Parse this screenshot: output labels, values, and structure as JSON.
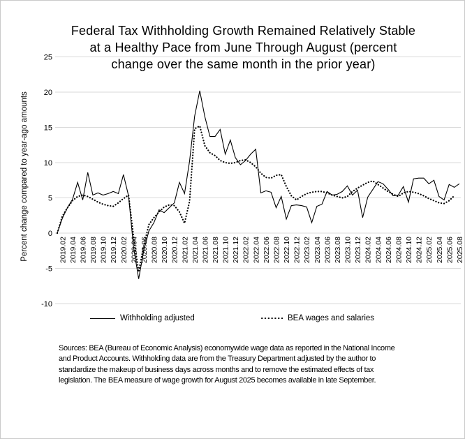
{
  "colors": {
    "background": "#ffffff",
    "border": "#c9c9c9",
    "gridline": "#d9d9d9",
    "series": "#000000",
    "text": "#000000"
  },
  "title": {
    "lines": [
      "Federal Tax Withholding Growth Remained Relatively Stable",
      "at a Healthy Pace from June Through August (percent",
      "change over the same month in the prior year)"
    ]
  },
  "y_axis": {
    "label": "Percent change compared to year-ago amounts",
    "ticks": [
      25,
      20,
      15,
      10,
      5,
      0,
      -5,
      -10
    ]
  },
  "x_axis": {
    "labels": [
      "2019.02",
      "2019.04",
      "2019.06",
      "2019.08",
      "2019.10",
      "2019.12",
      "2020.02",
      "2020.04",
      "2020.06",
      "2020.08",
      "2020.10",
      "2020.12",
      "2021.02",
      "2021.04",
      "2021.06",
      "2021.08",
      "2021.10",
      "2021.12",
      "2022.02",
      "2022.04",
      "2022.06",
      "2022.08",
      "2022.10",
      "2022.12",
      "2023.02",
      "2023.04",
      "2023.06",
      "2023.08",
      "2023.10",
      "2023.12",
      "2024.02",
      "2024.04",
      "2024.06",
      "2024.08",
      "2024.10",
      "2024.12",
      "2025.02",
      "2025.04",
      "2025.06",
      "2025.08"
    ]
  },
  "legend": [
    {
      "label": "Withholding adjusted",
      "style": "solid"
    },
    {
      "label": "BEA wages and salaries",
      "style": "dotted"
    }
  ],
  "source_note": {
    "lines": [
      "Sources:  BEA (Bureau of Economic Analysis) economywide wage data as reported in the National Income",
      "and Product Accounts. Withholding data are from the Treasury Department adjusted by the author to",
      "standardize the makeup of business days across months and to remove the estimated effects of tax",
      "legislation. The BEA measure of wage growth for August 2025 becomes available in late September."
    ]
  },
  "chart_data": {
    "type": "line",
    "title": "Federal Tax Withholding Growth Remained Relatively Stable at a Healthy Pace from June Through August (percent change over the same month in the prior year)",
    "xlabel": "",
    "ylabel": "Percent change compared to year-ago amounts",
    "ylim": [
      -10,
      25
    ],
    "grid": "horizontal",
    "legend_position": "bottom",
    "x": [
      "2019.01",
      "2019.02",
      "2019.03",
      "2019.04",
      "2019.05",
      "2019.06",
      "2019.07",
      "2019.08",
      "2019.09",
      "2019.10",
      "2019.11",
      "2019.12",
      "2020.01",
      "2020.02",
      "2020.03",
      "2020.04",
      "2020.05",
      "2020.06",
      "2020.07",
      "2020.08",
      "2020.09",
      "2020.10",
      "2020.11",
      "2020.12",
      "2021.01",
      "2021.02",
      "2021.03",
      "2021.04",
      "2021.05",
      "2021.06",
      "2021.07",
      "2021.08",
      "2021.09",
      "2021.10",
      "2021.11",
      "2021.12",
      "2022.01",
      "2022.02",
      "2022.03",
      "2022.04",
      "2022.05",
      "2022.06",
      "2022.07",
      "2022.08",
      "2022.09",
      "2022.10",
      "2022.11",
      "2022.12",
      "2023.01",
      "2023.02",
      "2023.03",
      "2023.04",
      "2023.05",
      "2023.06",
      "2023.07",
      "2023.08",
      "2023.09",
      "2023.10",
      "2023.11",
      "2023.12",
      "2024.01",
      "2024.02",
      "2024.03",
      "2024.04",
      "2024.05",
      "2024.06",
      "2024.07",
      "2024.08",
      "2024.09",
      "2024.10",
      "2024.11",
      "2024.12",
      "2025.01",
      "2025.02",
      "2025.03",
      "2025.04",
      "2025.05",
      "2025.06",
      "2025.07",
      "2025.08"
    ],
    "series": [
      {
        "name": "Withholding adjusted",
        "style": "solid",
        "values": [
          0.0,
          2.1,
          3.6,
          4.8,
          7.2,
          4.7,
          8.6,
          5.4,
          5.7,
          5.4,
          5.6,
          5.9,
          5.6,
          8.3,
          5.3,
          -2.0,
          -6.5,
          -2.5,
          0.3,
          1.5,
          3.3,
          2.9,
          3.6,
          4.3,
          7.2,
          5.6,
          10.2,
          16.6,
          20.2,
          16.5,
          13.7,
          13.7,
          14.7,
          11.2,
          13.2,
          10.7,
          9.7,
          10.3,
          11.2,
          11.9,
          5.7,
          6.0,
          5.8,
          3.6,
          5.2,
          2.0,
          3.9,
          4.0,
          3.9,
          3.7,
          1.5,
          3.8,
          4.1,
          5.9,
          5.4,
          5.5,
          5.9,
          6.7,
          5.4,
          6.1,
          2.2,
          5.1,
          6.2,
          7.3,
          7.0,
          6.2,
          5.3,
          5.4,
          6.6,
          4.4,
          7.7,
          7.8,
          7.8,
          7.0,
          7.5,
          5.2,
          4.7,
          6.9,
          6.5,
          7.0
        ]
      },
      {
        "name": "BEA wages and salaries",
        "style": "dotted",
        "values": [
          0.0,
          2.4,
          3.6,
          4.6,
          5.2,
          5.4,
          5.2,
          4.8,
          4.4,
          4.1,
          3.9,
          3.8,
          4.3,
          4.9,
          5.4,
          -0.5,
          -5.5,
          -1.8,
          1.2,
          2.2,
          3.0,
          3.7,
          4.0,
          3.9,
          3.0,
          1.4,
          4.5,
          14.8,
          15.2,
          12.4,
          11.4,
          11.0,
          10.3,
          10.0,
          9.9,
          10.0,
          10.3,
          10.4,
          10.0,
          9.4,
          8.5,
          7.9,
          7.8,
          8.2,
          8.3,
          6.6,
          5.3,
          4.7,
          5.2,
          5.6,
          5.8,
          5.9,
          5.9,
          5.7,
          5.4,
          5.2,
          5.0,
          5.2,
          5.9,
          6.4,
          6.8,
          7.2,
          7.4,
          6.9,
          6.4,
          5.9,
          5.5,
          5.2,
          5.7,
          5.9,
          5.8,
          5.6,
          5.3,
          4.9,
          4.6,
          4.3,
          4.2,
          4.6,
          5.3
        ]
      }
    ]
  }
}
